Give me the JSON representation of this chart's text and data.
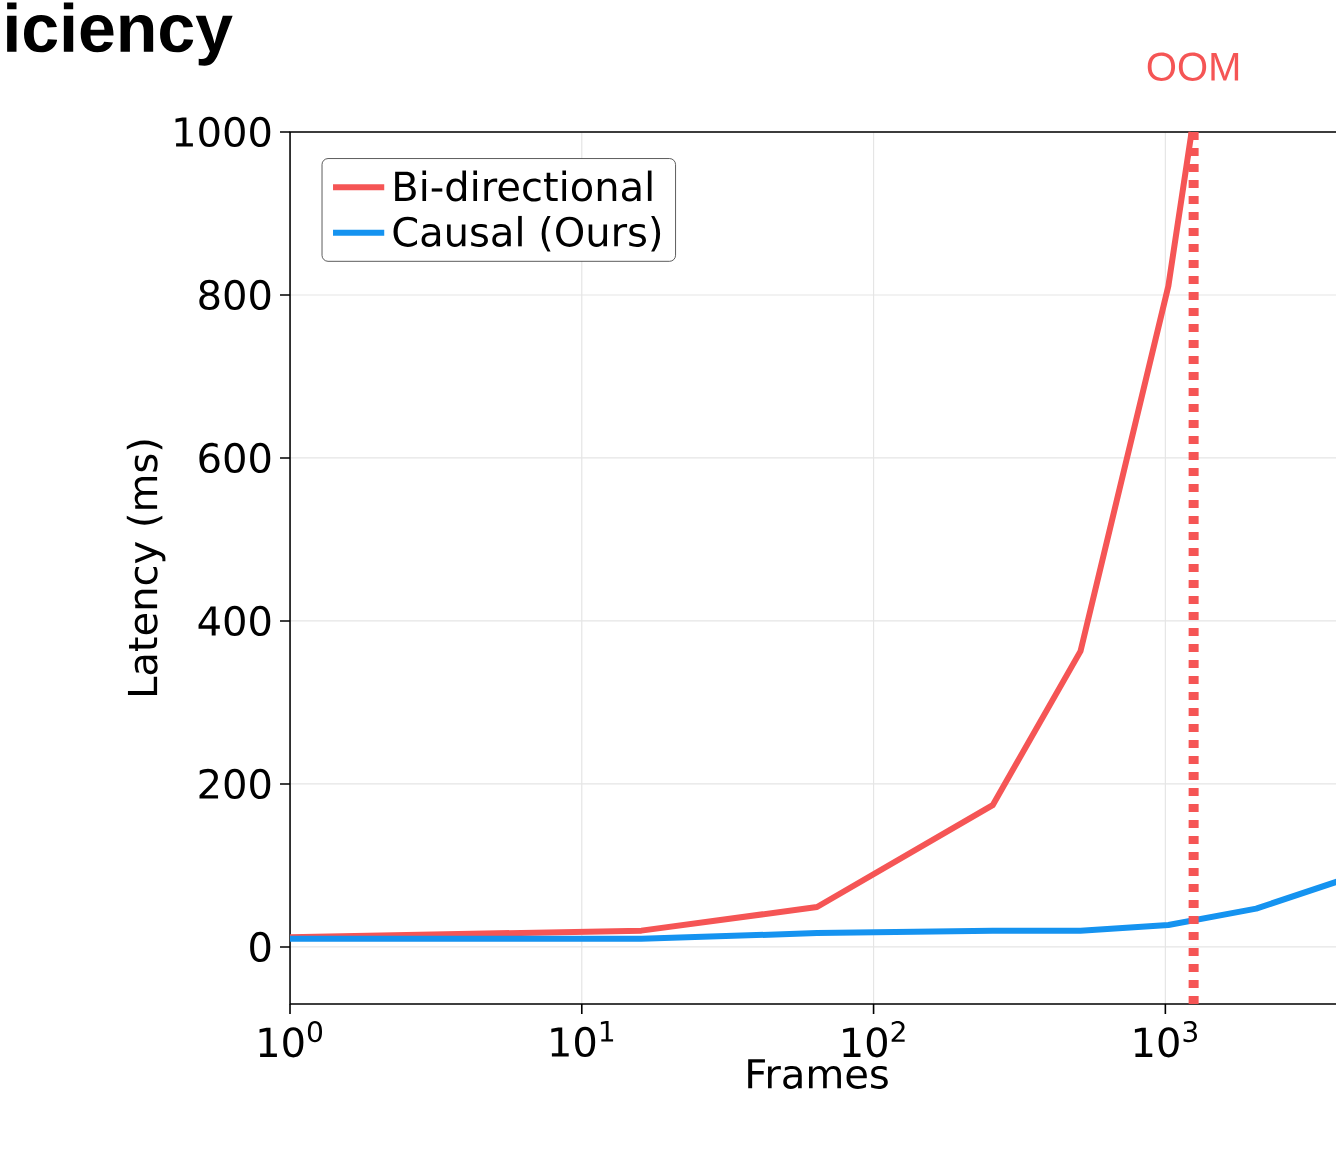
{
  "chart_data": {
    "type": "line",
    "title": "iciency",
    "xlabel": "Frames",
    "ylabel": "Latency (ms)",
    "series": [
      {
        "name": "Bi-directional",
        "color": "#f55555",
        "x": [
          1,
          16,
          64,
          256,
          512,
          1024,
          1230
        ],
        "values": [
          12,
          20,
          49,
          174,
          363,
          811,
          1000
        ]
      },
      {
        "name": "Causal (Ours)",
        "color": "#1593f0",
        "x": [
          1,
          16,
          64,
          256,
          512,
          1024,
          2048,
          4096
        ],
        "values": [
          10,
          10,
          17,
          20,
          20,
          27,
          47,
          83
        ]
      }
    ],
    "log": "x",
    "xlim": [
      1,
      4096
    ],
    "ylim": [
      -70,
      1000
    ],
    "xticks": [
      {
        "value": 1,
        "label": "10$^{0}$"
      },
      {
        "value": 10,
        "label": "10$^{1}$"
      },
      {
        "value": 100,
        "label": "10$^{2}$"
      },
      {
        "value": 1000,
        "label": "10$^{3}$"
      }
    ],
    "yticks": [
      0,
      200,
      400,
      600,
      800,
      1000
    ],
    "grid": true,
    "legend": "top left",
    "line_style": "solid",
    "marker": "none",
    "ref_lines": [
      {
        "axis": "x",
        "value": 1250,
        "label": "OOM",
        "color": "#f55555",
        "line_style": "dotted"
      }
    ]
  }
}
